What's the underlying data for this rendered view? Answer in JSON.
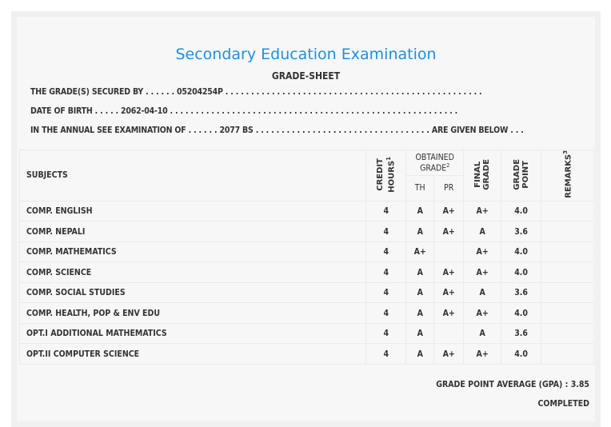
{
  "title": "Secondary Education Examination",
  "subtitle": "GRADE-SHEET",
  "info": {
    "line1": "THE GRADE(S) SECURED BY . . . . . . 05204254P . . . . . . . . . . . . . . . . . . . . . . . . . . . . . . . . . . . . . . . . . . . . . . . . . .",
    "line2": "DATE OF BIRTH . . . . . 2062-04-10 . . . . . . . . . . . . . . . . . . . . . . . . . . . . . . . . . . . . . . . . . . . . . . . . . . . . . . . .",
    "line3": "IN THE ANNUAL SEE EXAMINATION OF . . . . . . 2077 BS . . . . . . . . . . . . . . . . . . . . . . . . . . . . . . . . . . ARE GIVEN BELOW . . ."
  },
  "headers": {
    "subjects": "SUBJECTS",
    "credit": "CREDIT HOURS",
    "credit_sup": "1",
    "obtained": "OBTAINED GRADE",
    "obtained_sup": "2",
    "th": "TH",
    "pr": "PR",
    "final": "FINAL GRADE",
    "gp": "GRADE POINT",
    "remarks": "REMARKS",
    "remarks_sup": "3"
  },
  "rows": [
    {
      "subject": "COMP. ENGLISH",
      "credit": "4",
      "th": "A",
      "pr": "A+",
      "final": "A+",
      "gp": "4.0",
      "remarks": ""
    },
    {
      "subject": "COMP. NEPALI",
      "credit": "4",
      "th": "A",
      "pr": "A+",
      "final": "A",
      "gp": "3.6",
      "remarks": ""
    },
    {
      "subject": "COMP. MATHEMATICS",
      "credit": "4",
      "th": "A+",
      "pr": "",
      "final": "A+",
      "gp": "4.0",
      "remarks": ""
    },
    {
      "subject": "COMP. SCIENCE",
      "credit": "4",
      "th": "A",
      "pr": "A+",
      "final": "A+",
      "gp": "4.0",
      "remarks": ""
    },
    {
      "subject": "COMP. SOCIAL STUDIES",
      "credit": "4",
      "th": "A",
      "pr": "A+",
      "final": "A",
      "gp": "3.6",
      "remarks": ""
    },
    {
      "subject": "COMP. HEALTH, POP & ENV EDU",
      "credit": "4",
      "th": "A",
      "pr": "A+",
      "final": "A+",
      "gp": "4.0",
      "remarks": ""
    },
    {
      "subject": "OPT.I ADDITIONAL MATHEMATICS",
      "credit": "4",
      "th": "A",
      "pr": "",
      "final": "A",
      "gp": "3.6",
      "remarks": ""
    },
    {
      "subject": "OPT.II COMPUTER SCIENCE",
      "credit": "4",
      "th": "A",
      "pr": "A+",
      "final": "A+",
      "gp": "4.0",
      "remarks": ""
    }
  ],
  "gpa": "GRADE POINT AVERAGE (GPA) : 3.85",
  "status": "COMPLETED"
}
